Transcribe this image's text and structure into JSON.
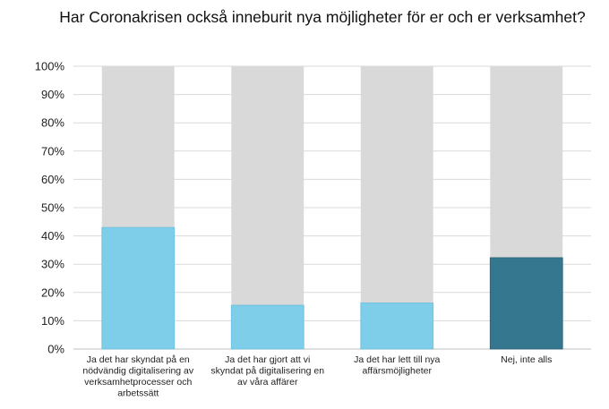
{
  "chart_data": {
    "type": "bar",
    "title": "Har Coronakrisen också inneburit nya möjligheter för er och er verksamhet?",
    "categories": [
      [
        "Ja det har skyndat på en",
        "nödvändig digitalisering av",
        "verksamhetprocesser och",
        "arbetssätt"
      ],
      [
        "Ja det har gjort att vi",
        "skyndat på digitalisering en",
        "av våra affärer"
      ],
      [
        "Ja det har lett till nya",
        "affärsmöjligheter"
      ],
      [
        "Nej, inte alls"
      ]
    ],
    "values": [
      43,
      15.5,
      16.3,
      32.3
    ],
    "background_value": 100,
    "bar_colors": [
      "#7ecde9",
      "#7ecde9",
      "#7ecde9",
      "#35778f"
    ],
    "background_color": "#d9d9d9",
    "ylim": [
      0,
      100
    ],
    "yticks": [
      "0%",
      "10%",
      "20%",
      "30%",
      "40%",
      "50%",
      "60%",
      "70%",
      "80%",
      "90%",
      "100%"
    ],
    "grid": true,
    "legend": "none"
  }
}
